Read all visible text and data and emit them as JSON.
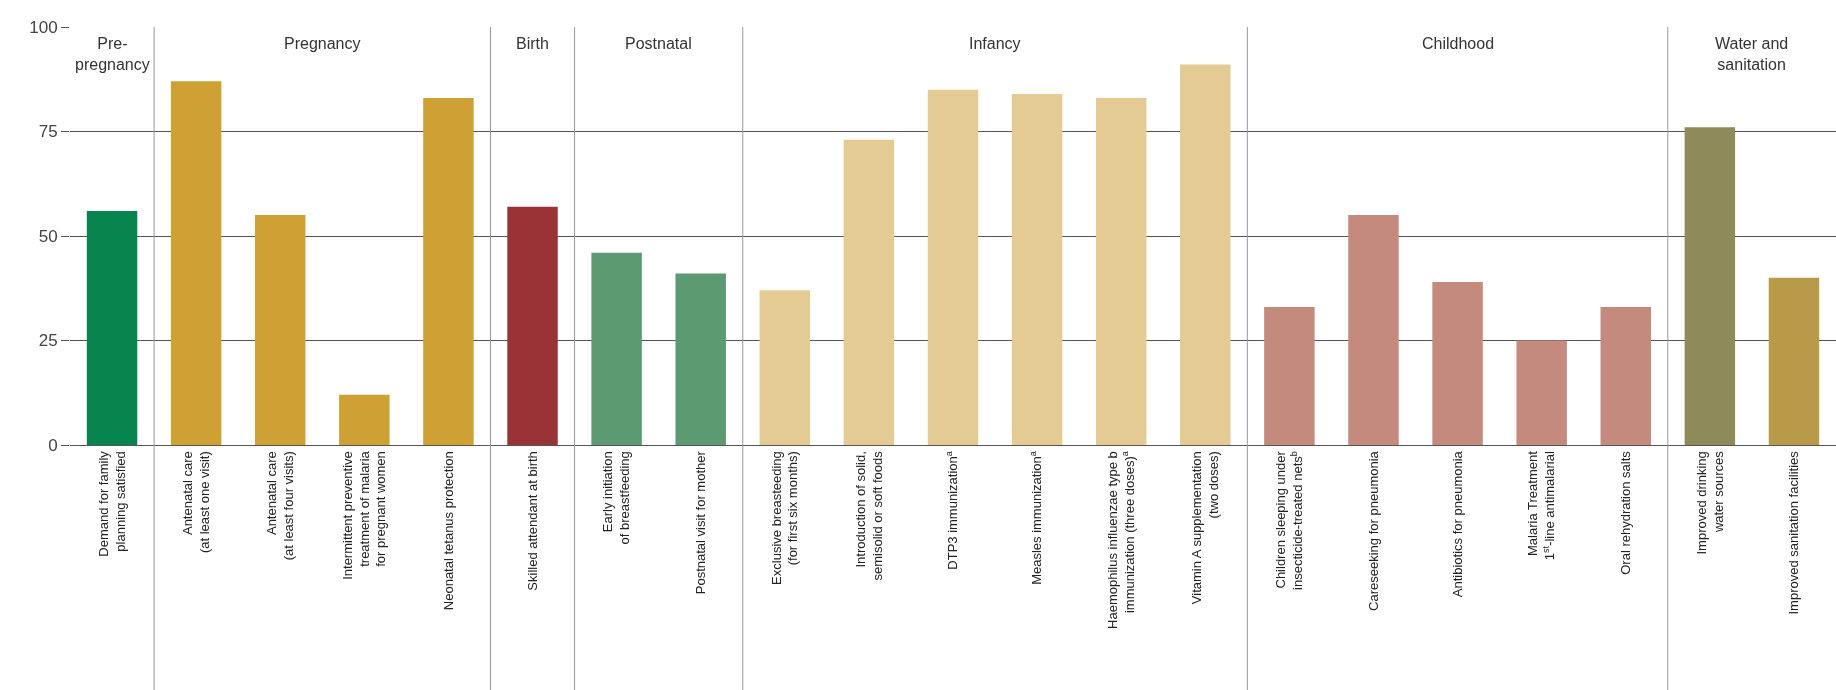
{
  "chart_data": {
    "type": "bar",
    "categories": [
      "Demand for family\nplanning satisfied",
      "Antenatal care\n(at least one visit)",
      "Antenatal care\n(at least four visits)",
      "Intermittent preventive\ntreatment of malaria\nfor pregnant women",
      "Neonatal tetanus protection",
      "Skilled attendant at birth",
      "Early initiation\nof breastfeeding",
      "Postnatal visit for mother",
      "Exclusive breasteeding\n(for first six months)",
      "Introduction of solid,\nsemisolid or soft foods",
      "DTP3 immunization$^{a}$",
      "Measles immunization$^{a}$",
      "Haemophilus influenzae type b\nimmunization (three doses)$^{a}$",
      "Vitamin A supplementation\n(two doses)",
      "Children sleeping under\ninsecticide-treated nets$^{b}$",
      "Careseeking for pneumonia",
      "Antibiotics for pneumonia",
      "Malaria Treatment\n1$^{st}$-line antimalarial",
      "Oral rehydration salts",
      "Improved drinking\nwater sources",
      "Improved sanitation facilities"
    ],
    "values": [
      56,
      87,
      55,
      12,
      83,
      57,
      46,
      41,
      37,
      73,
      85,
      84,
      83,
      91,
      33,
      55,
      39,
      25,
      33,
      76,
      40
    ],
    "colors": [
      "#07854f",
      "#cfa033",
      "#cfa033",
      "#cfa033",
      "#cfa033",
      "#993336",
      "#5c9a72",
      "#5c9a72",
      "#e4cb93",
      "#e4cb93",
      "#e4cb93",
      "#e4cb93",
      "#e4cb93",
      "#e4cb93",
      "#c48a7e",
      "#c48a7e",
      "#c48a7e",
      "#c48a7e",
      "#c48a7e",
      "#8f8a5a",
      "#b89a48"
    ],
    "ylim": [
      0,
      100
    ],
    "yticks": [
      0,
      25,
      50,
      75,
      100
    ],
    "grid": "y",
    "annotations": [
      "Pre-\npregnancy",
      "Pregnancy",
      "Birth",
      "Postnatal",
      "Infancy",
      "Childhood",
      "Water and\nsanitation"
    ]
  }
}
